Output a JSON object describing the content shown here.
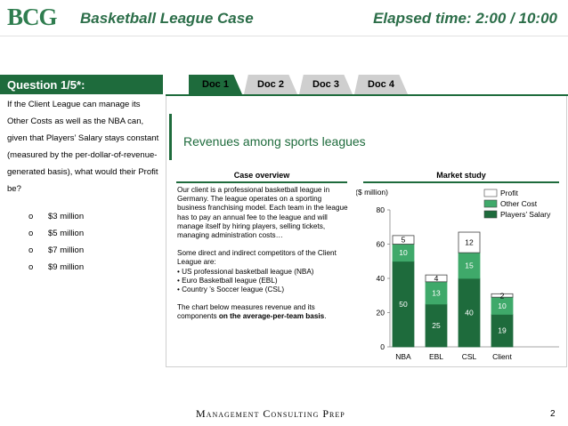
{
  "header": {
    "logo_text": "BCG",
    "title": "Basketball League Case",
    "elapsed": "Elapsed time: 2:00 / 10:00"
  },
  "question": {
    "label": "Question 1/5*:",
    "text": "If the Client League can manage its Other Costs as well as the NBA can, given that Players’ Salary stays constant (measured by the per-dollar-of-revenue-generated basis), what would their Profit be?",
    "options": [
      "$3 million",
      "$5 million",
      "$7 million",
      "$9 million"
    ],
    "bullet": "o"
  },
  "tabs": [
    {
      "label": "Doc 1",
      "active": true
    },
    {
      "label": "Doc 2",
      "active": false
    },
    {
      "label": "Doc 3",
      "active": false
    },
    {
      "label": "Doc 4",
      "active": false
    }
  ],
  "doc": {
    "title": "Revenues among sports leagues",
    "case_overview_title": "Case overview",
    "case_overview_p1": "Our client is a professional basketball league in Germany. The league operates on a sporting business franchising model. Each team in the league has to pay an annual fee to the league and will manage itself by hiring players, selling tickets, managing administration costs…",
    "case_overview_p2": "Some direct and indirect competitors of the Client League are:",
    "competitors": [
      "•  US professional basketball league (NBA)",
      "•  Euro Basketball league (EBL)",
      "•  Country ’s Soccer league (CSL)"
    ],
    "case_overview_p3_pre": "The chart below measures revenue and its components ",
    "case_overview_p3_bold": "on the average-per-team basis",
    "case_overview_p3_post": ".",
    "market_study_title": "Market study"
  },
  "chart_data": {
    "type": "bar",
    "stacked": true,
    "title": "Market study",
    "ylabel": "($ million)",
    "ylim": [
      0,
      80
    ],
    "yticks": [
      0,
      20,
      40,
      60,
      80
    ],
    "categories": [
      "NBA",
      "EBL",
      "CSL",
      "Client"
    ],
    "series": [
      {
        "name": "Players’ Salary",
        "values": [
          50,
          25,
          40,
          19
        ],
        "color": "#1e6b3c"
      },
      {
        "name": "Other Cost",
        "values": [
          10,
          13,
          15,
          10
        ],
        "color": "#3fa96a"
      },
      {
        "name": "Profit",
        "values": [
          5,
          4,
          12,
          2
        ],
        "color": "#ffffff"
      }
    ],
    "legend_position": "top-right"
  },
  "footer": {
    "brand": "Management Consulting Prep",
    "page": "2"
  },
  "colors": {
    "accent": "#1e6b3c",
    "accent_light": "#3fa96a",
    "tab_inactive": "#cfcfcf"
  }
}
